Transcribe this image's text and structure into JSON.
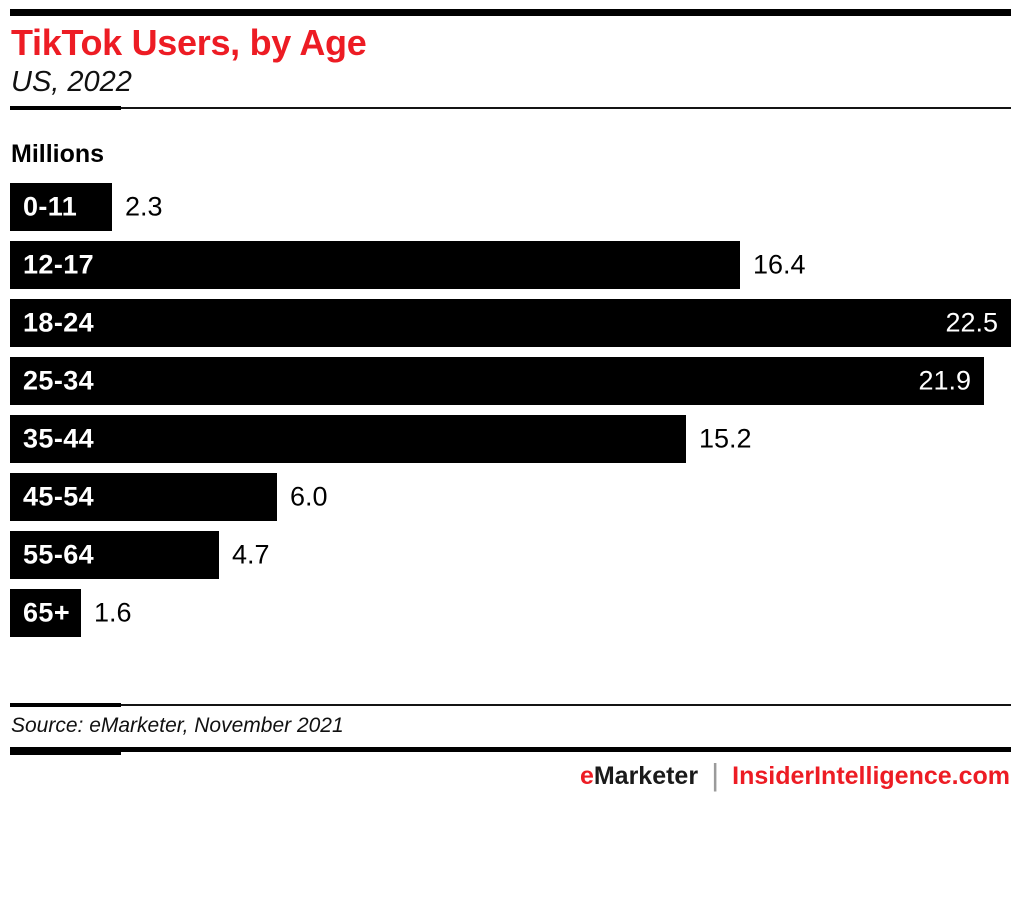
{
  "chart_data": {
    "type": "bar",
    "orientation": "horizontal",
    "title": "TikTok Users, by Age",
    "subtitle": "US, 2022",
    "unit_label": "Millions",
    "categories": [
      "0-11",
      "12-17",
      "18-24",
      "25-34",
      "35-44",
      "45-54",
      "55-64",
      "65+"
    ],
    "values": [
      2.3,
      16.4,
      22.5,
      21.9,
      15.2,
      6.0,
      4.7,
      1.6
    ],
    "value_labels": [
      "2.3",
      "16.4",
      "22.5",
      "21.9",
      "15.2",
      "6.0",
      "4.7",
      "1.6"
    ],
    "xlim": [
      0,
      22.5
    ],
    "grid": false,
    "legend": false,
    "bar_color": "#000000",
    "category_label_color": "#ffffff",
    "value_label_color_outside": "#000000",
    "value_label_color_inside": "#ffffff",
    "inside_label_threshold": 20,
    "source": "Source: eMarketer, November 2021"
  },
  "footer": {
    "brand_left_accent": "e",
    "brand_left_rest": "Marketer",
    "brand_divider": "|",
    "brand_right": "InsiderIntelligence.com"
  },
  "colors": {
    "accent_red": "#ED1C24",
    "bar_black": "#000000",
    "divider_gray": "#9B9B9B"
  }
}
